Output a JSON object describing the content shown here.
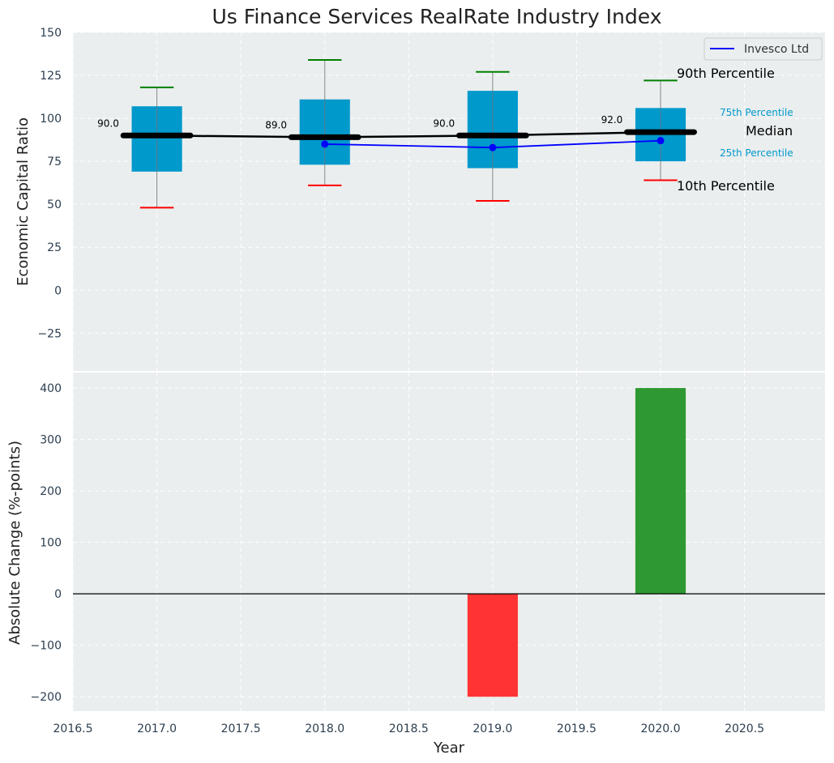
{
  "chart_data": [
    {
      "type": "box",
      "title": "Us Finance Services RealRate Industry Index",
      "xlabel": "",
      "ylabel": "Economic Capital Ratio",
      "xlim": [
        2016.5,
        2020.98
      ],
      "ylim": [
        -47,
        150
      ],
      "yticks": [
        -25,
        0,
        25,
        50,
        75,
        100,
        125,
        150
      ],
      "grid": true,
      "boxes": [
        {
          "x": 2017.0,
          "p10": 48,
          "p25": 69,
          "median": 90.0,
          "p75": 107,
          "p90": 118,
          "label": "90.0"
        },
        {
          "x": 2018.0,
          "p10": 61,
          "p25": 73,
          "median": 89.0,
          "p75": 111,
          "p90": 134,
          "label": "89.0"
        },
        {
          "x": 2019.0,
          "p10": 52,
          "p25": 71,
          "median": 90.0,
          "p75": 116,
          "p90": 127,
          "label": "90.0"
        },
        {
          "x": 2020.0,
          "p10": 64,
          "p25": 75,
          "median": 92.0,
          "p75": 106,
          "p90": 122,
          "label": "92.0"
        }
      ],
      "series": [
        {
          "name": "Invesco Ltd",
          "color": "#0000ff",
          "x": [
            2018.0,
            2019.0,
            2020.0
          ],
          "values": [
            85,
            83,
            87
          ]
        }
      ],
      "legend": {
        "placement": "top-right",
        "entries": [
          "Invesco Ltd"
        ]
      },
      "annotations": {
        "p90": "90th Percentile",
        "p75": "75th Percentile",
        "median": "Median",
        "p25": "25th Percentile",
        "p10": "10th Percentile"
      },
      "colors": {
        "box": "#0099cc",
        "median": "#000000",
        "p90_cap": "#008000",
        "p10_cap": "#ff0000",
        "background": "#eaeeee"
      }
    },
    {
      "type": "bar",
      "title": "",
      "xlabel": "Year",
      "ylabel": "Absolute Change (%-points)",
      "xlim": [
        2016.5,
        2020.98
      ],
      "ylim": [
        -228,
        430
      ],
      "yticks": [
        -200,
        -100,
        0,
        100,
        200,
        300,
        400
      ],
      "xticks": [
        "2016.5",
        "2017.0",
        "2017.5",
        "2018.0",
        "2018.5",
        "2019.0",
        "2019.5",
        "2020.0",
        "2020.5"
      ],
      "x": [
        2019.0,
        2020.0
      ],
      "values": [
        -200,
        400
      ],
      "bar_colors": [
        "#ff3333",
        "#2e9933"
      ],
      "grid": true
    }
  ]
}
